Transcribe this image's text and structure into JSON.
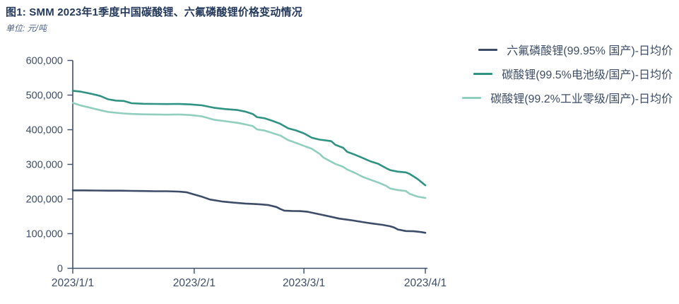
{
  "header": {
    "title": "图1: SMM 2023年1季度中国碳酸锂、六氟磷酸锂价格变动情况",
    "unit": "单位: 元/吨"
  },
  "colors": {
    "title_text": "#24395c",
    "unit_text": "#52638a",
    "axis": "#3e4d68",
    "tick_label": "#3e4d68"
  },
  "chart_data": {
    "type": "line",
    "title": "SMM 2023年1季度中国碳酸锂、六氟磷酸锂价格变动情况",
    "ylabel": "元/吨",
    "grid": false,
    "legend_position": "top-right",
    "y_axis": {
      "range": [
        0,
        600000
      ],
      "ticks": [
        0,
        100000,
        200000,
        300000,
        400000,
        500000,
        600000
      ],
      "tick_labels": [
        "0",
        "100,000",
        "200,000",
        "300,000",
        "400,000",
        "500,000",
        "600,000"
      ]
    },
    "x_axis": {
      "unit": "date",
      "range_days": [
        0,
        90
      ],
      "tick_days": [
        0,
        31,
        59,
        90
      ],
      "tick_labels": [
        "2023/1/1",
        "2023/2/1",
        "2023/3/1",
        "2023/4/1"
      ]
    },
    "series": [
      {
        "name": "六氟磷酸锂(99.95% 国产)-日均价",
        "color": "#3d4d68",
        "days": [
          0,
          3,
          6,
          9,
          12,
          15,
          18,
          21,
          24,
          27,
          29,
          31,
          33,
          35,
          38,
          41,
          44,
          46,
          48,
          50,
          52,
          53,
          54,
          56,
          58,
          60,
          63,
          66,
          68,
          71,
          74,
          76,
          79,
          81,
          82,
          83,
          85,
          87,
          89,
          90
        ],
        "values": [
          225000,
          225000,
          224500,
          224000,
          224000,
          223500,
          223000,
          222500,
          222500,
          221500,
          219500,
          213000,
          206500,
          198500,
          193000,
          189500,
          187000,
          186000,
          184500,
          182500,
          177000,
          171000,
          166500,
          165500,
          165000,
          163000,
          156000,
          148500,
          143500,
          139000,
          133500,
          130000,
          125500,
          121500,
          118000,
          112000,
          107500,
          107000,
          104500,
          102500
        ]
      },
      {
        "name": "碳酸锂(99.5%电池级/国产)-日均价",
        "color": "#2f9282",
        "days": [
          0,
          2,
          5,
          7,
          9,
          11,
          13,
          15,
          18,
          21,
          24,
          27,
          30,
          33,
          36,
          39,
          42,
          44,
          46,
          47,
          49,
          51,
          53,
          55,
          57,
          59,
          61,
          63,
          65,
          66,
          67,
          69,
          70,
          72,
          74,
          76,
          78,
          80,
          81,
          83,
          85,
          86,
          88,
          90
        ],
        "values": [
          512500,
          510000,
          503000,
          497500,
          488000,
          484000,
          483000,
          476500,
          475000,
          474500,
          474000,
          474500,
          473000,
          470500,
          463500,
          459500,
          457000,
          452500,
          445000,
          436500,
          433000,
          425500,
          417000,
          404000,
          398000,
          389500,
          377000,
          371500,
          368500,
          367000,
          356500,
          348000,
          336500,
          328000,
          318500,
          308500,
          301500,
          289000,
          283500,
          279000,
          277000,
          272500,
          258000,
          239500
        ]
      },
      {
        "name": "碳酸锂(99.2%工业零级/国产)-日均价",
        "color": "#90cec0",
        "days": [
          0,
          2,
          5,
          7,
          9,
          11,
          13,
          15,
          18,
          21,
          24,
          27,
          30,
          33,
          36,
          39,
          42,
          44,
          46,
          47,
          49,
          51,
          53,
          55,
          57,
          59,
          61,
          63,
          64,
          66,
          67,
          69,
          70,
          72,
          74,
          76,
          78,
          80,
          81,
          83,
          85,
          86,
          88,
          90
        ],
        "values": [
          477500,
          470000,
          462000,
          456500,
          451500,
          449000,
          447000,
          445500,
          444500,
          444000,
          443500,
          444000,
          442500,
          438500,
          429000,
          424500,
          420000,
          415500,
          410500,
          401000,
          397500,
          390500,
          383000,
          370000,
          362000,
          353500,
          345000,
          330500,
          319500,
          307500,
          301500,
          293000,
          285500,
          275500,
          264000,
          255500,
          247500,
          238000,
          230500,
          226000,
          223000,
          215000,
          207000,
          203000
        ]
      }
    ]
  }
}
